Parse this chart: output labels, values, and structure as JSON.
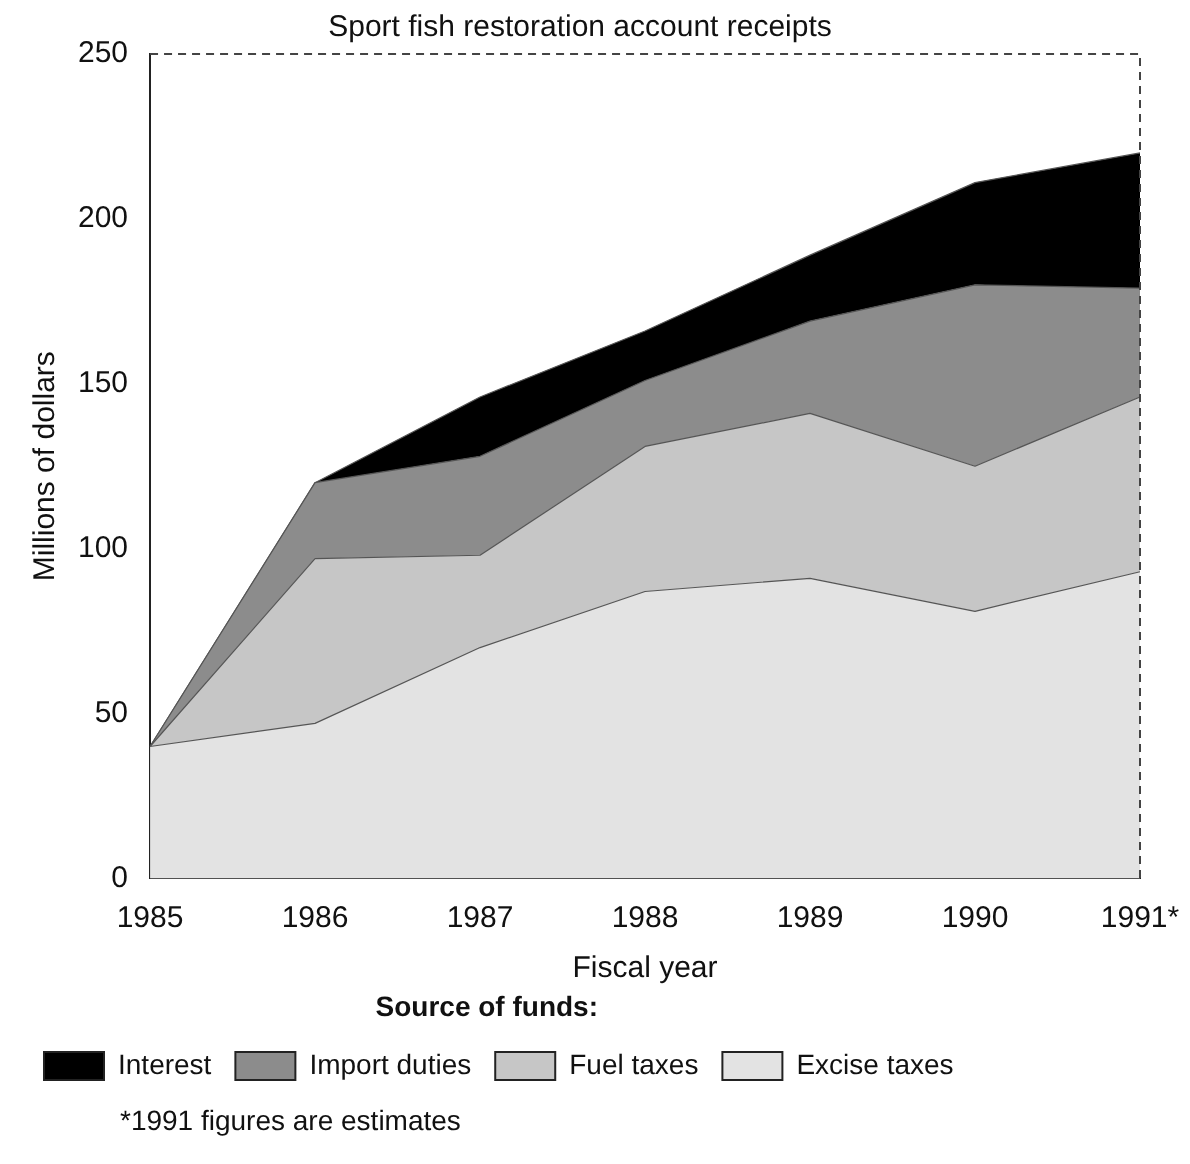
{
  "chart_data": {
    "type": "area",
    "stacked": true,
    "title": "Sport fish restoration account receipts",
    "xlabel": "Fiscal year",
    "ylabel": "Millions of dollars",
    "categories": [
      "1985",
      "1986",
      "1987",
      "1988",
      "1989",
      "1990",
      "1991*"
    ],
    "series": [
      {
        "name": "Excise taxes",
        "color": "#e3e3e3",
        "values": [
          40,
          47,
          70,
          87,
          91,
          81,
          93
        ]
      },
      {
        "name": "Fuel taxes",
        "color": "#c6c6c6",
        "values": [
          0,
          50,
          28,
          44,
          50,
          44,
          53
        ]
      },
      {
        "name": "Import duties",
        "color": "#8c8c8c",
        "values": [
          0,
          23,
          30,
          20,
          28,
          55,
          33
        ]
      },
      {
        "name": "Interest",
        "color": "#000000",
        "values": [
          0,
          0,
          18,
          15,
          20,
          31,
          41
        ]
      }
    ],
    "ylim": [
      0,
      250
    ],
    "yticks": [
      0,
      50,
      100,
      150,
      200,
      250
    ],
    "grid": false,
    "legend": "bottom",
    "legend_title": "Source of funds:",
    "annotations": [
      "*1991 figures are estimates"
    ]
  }
}
